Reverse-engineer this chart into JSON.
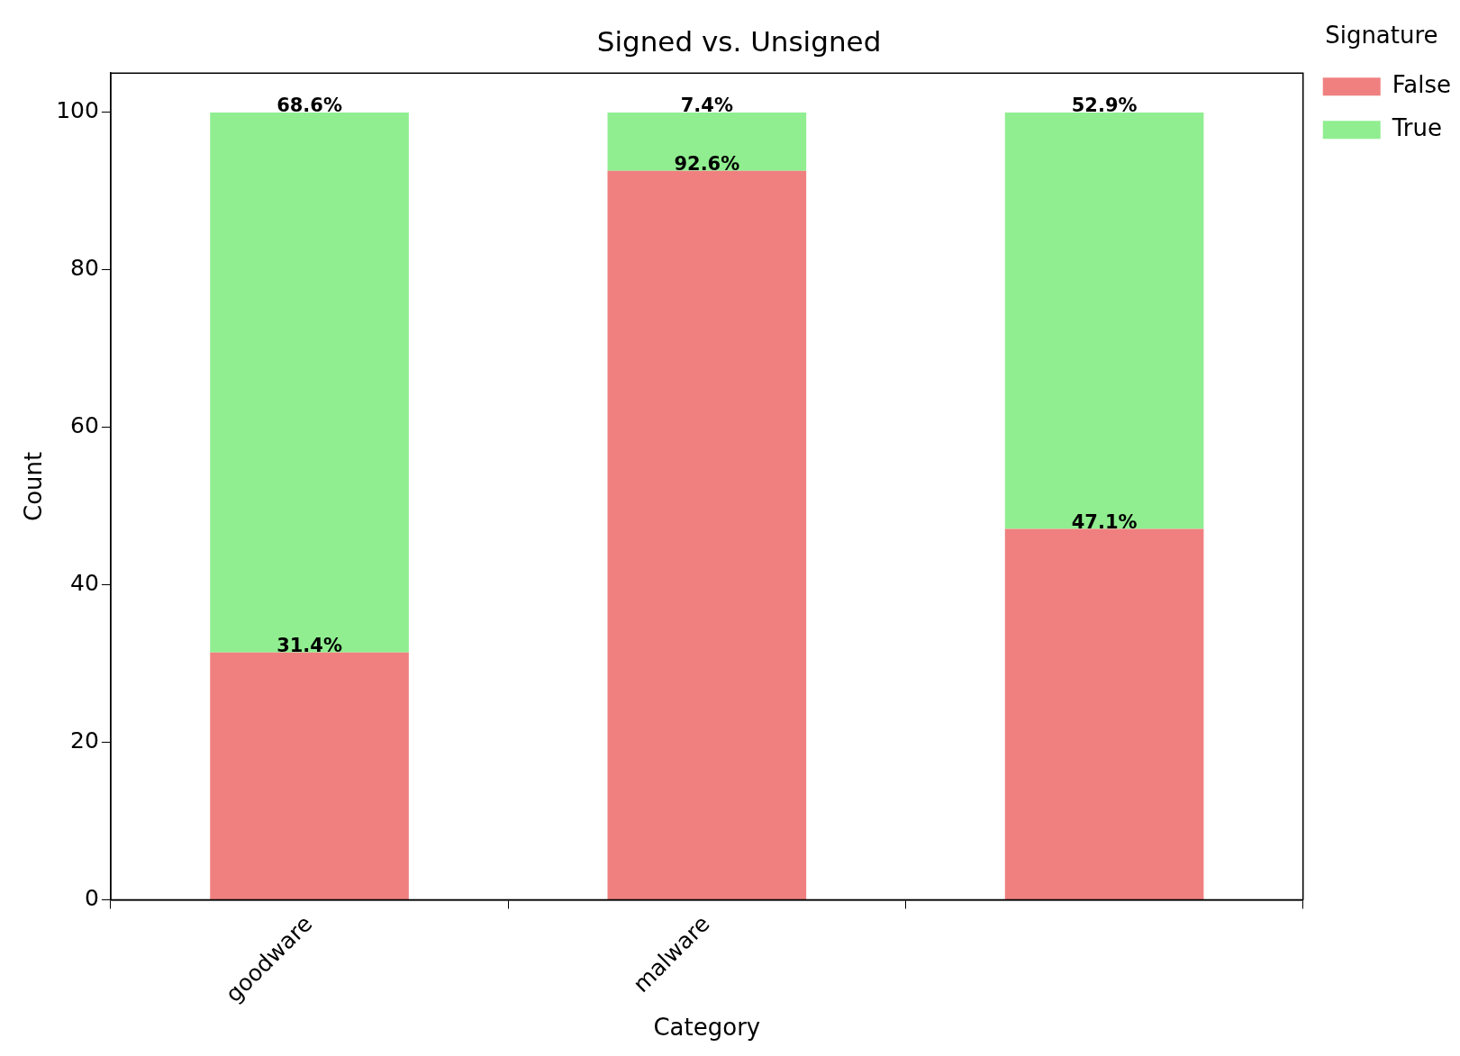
{
  "chart_data": {
    "type": "bar",
    "stacked": true,
    "title": "Signed vs. Unsigned",
    "xlabel": "Category",
    "ylabel": "Count",
    "legend_title": "Signature",
    "categories": [
      "goodware",
      "malware",
      null
    ],
    "series": [
      {
        "name": "False",
        "color": "#f08080",
        "values": [
          31.4,
          92.6,
          47.1
        ],
        "value_labels": [
          "31.4%",
          "92.6%",
          "47.1%"
        ]
      },
      {
        "name": "True",
        "color": "#90ee90",
        "values": [
          68.6,
          7.4,
          52.9
        ],
        "value_labels": [
          "68.6%",
          "7.4%",
          "52.9%"
        ]
      }
    ],
    "ylim": [
      0,
      105
    ],
    "yticks": [
      0,
      20,
      40,
      60,
      80,
      100
    ],
    "grid": false,
    "legend": "top right"
  }
}
